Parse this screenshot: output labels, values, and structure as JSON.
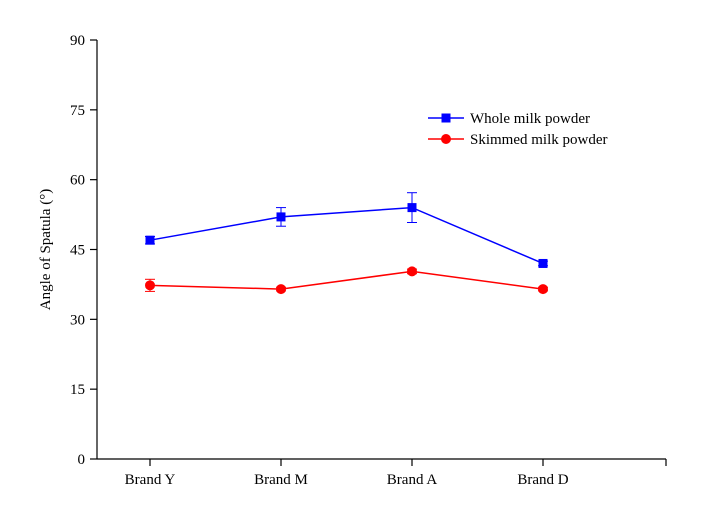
{
  "chart_data": {
    "type": "line",
    "title": "",
    "xlabel": "",
    "ylabel": "Angle of Spatula (°)",
    "ylim": [
      0,
      90
    ],
    "yticks": [
      "0",
      "15",
      "30",
      "45",
      "60",
      "75",
      "90"
    ],
    "categories": [
      "Brand Y",
      "Brand M",
      "Brand A",
      "Brand D"
    ],
    "grid": false,
    "legend_position": "top-right",
    "series": [
      {
        "name": "Whole milk powder",
        "color": "#0000ff",
        "marker": "square",
        "values": [
          47.0,
          52.0,
          54.0,
          42.0
        ],
        "errors": [
          0.8,
          2.0,
          3.2,
          0.5
        ]
      },
      {
        "name": "Skimmed milk powder",
        "color": "#ff0000",
        "marker": "circle",
        "values": [
          37.3,
          36.5,
          40.3,
          36.5
        ],
        "errors": [
          1.3,
          0.4,
          0.5,
          0.4
        ]
      }
    ]
  }
}
